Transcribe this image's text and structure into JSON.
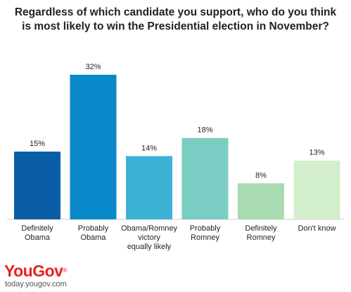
{
  "chart_data": {
    "type": "bar",
    "title_lines": [
      "Regardless of which candidate you support, who do you think",
      "is most likely to win the Presidential election in November?"
    ],
    "categories": [
      [
        "Definitely",
        "Obama"
      ],
      [
        "Probably",
        "Obama"
      ],
      [
        "Obama/Romney",
        "victory",
        "equally likely"
      ],
      [
        "Probably",
        "Romney"
      ],
      [
        "Definitely",
        "Romney"
      ],
      [
        "Don't know"
      ]
    ],
    "values": [
      15,
      32,
      14,
      18,
      8,
      13
    ],
    "value_labels": [
      "15%",
      "32%",
      "14%",
      "18%",
      "8%",
      "13%"
    ],
    "colors": [
      "#0a5ea5",
      "#0888c9",
      "#3bb2d6",
      "#7acdc3",
      "#a9dbb3",
      "#d2eecb"
    ],
    "ylim": [
      0,
      32
    ],
    "grid": false,
    "legend": "none"
  },
  "brand": {
    "logo": "YouGov",
    "logo_mark": "®",
    "url": "today.yougov.com"
  }
}
